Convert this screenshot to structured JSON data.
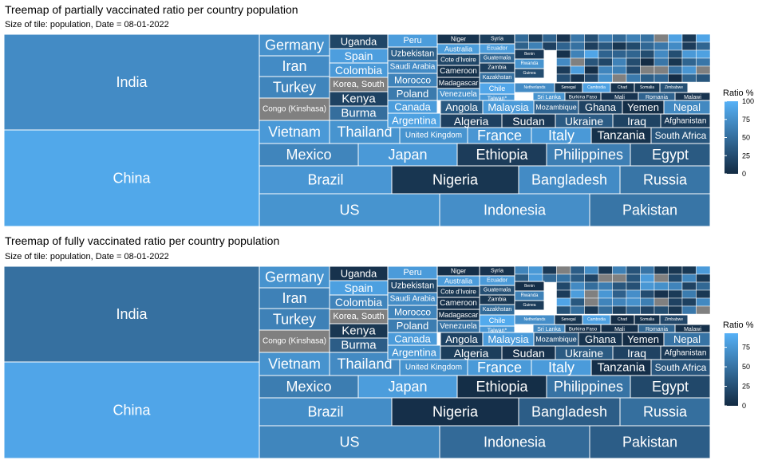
{
  "chart_data": [
    {
      "type": "treemap",
      "title": "Treemap of partially vaccinated ratio per country population",
      "subtitle": "Size of tile: population, Date = 08-01-2022",
      "legend": {
        "title": "Ratio %",
        "ticks": [
          0,
          25,
          50,
          75,
          100
        ],
        "range": [
          0,
          100
        ],
        "low_color": "#132B43",
        "high_color": "#56B1F7"
      },
      "missing_color": "#808080",
      "tiles": [
        {
          "label": "India",
          "ratio": 72
        },
        {
          "label": "China",
          "ratio": 93
        },
        {
          "label": "US",
          "ratio": 78
        },
        {
          "label": "Indonesia",
          "ratio": 74
        },
        {
          "label": "Pakistan",
          "ratio": 55
        },
        {
          "label": "Brazil",
          "ratio": 80
        },
        {
          "label": "Nigeria",
          "ratio": 8
        },
        {
          "label": "Bangladesh",
          "ratio": 72
        },
        {
          "label": "Russia",
          "ratio": 55
        },
        {
          "label": "Mexico",
          "ratio": 67
        },
        {
          "label": "Japan",
          "ratio": 82
        },
        {
          "label": "Ethiopia",
          "ratio": 13
        },
        {
          "label": "Philippines",
          "ratio": 62
        },
        {
          "label": "Egypt",
          "ratio": 35
        },
        {
          "label": "Germany",
          "ratio": 76
        },
        {
          "label": "Iran",
          "ratio": 72
        },
        {
          "label": "Turkey",
          "ratio": 67
        },
        {
          "label": "Congo (Kinshasa)",
          "ratio": null
        },
        {
          "label": "Vietnam",
          "ratio": 82
        },
        {
          "label": "Uganda",
          "ratio": 20
        },
        {
          "label": "Spain",
          "ratio": 86
        },
        {
          "label": "Colombia",
          "ratio": 83
        },
        {
          "label": "Korea, South",
          "ratio": null
        },
        {
          "label": "Kenya",
          "ratio": 17
        },
        {
          "label": "Burma",
          "ratio": 50
        },
        {
          "label": "Thailand",
          "ratio": 78
        },
        {
          "label": "Peru",
          "ratio": 85
        },
        {
          "label": "Uzbekistan",
          "ratio": 40
        },
        {
          "label": "Saudi Arabia",
          "ratio": 72
        },
        {
          "label": "Morocco",
          "ratio": 66
        },
        {
          "label": "Poland",
          "ratio": 59
        },
        {
          "label": "Canada",
          "ratio": 85
        },
        {
          "label": "Argentina",
          "ratio": 88
        },
        {
          "label": "Niger",
          "ratio": 6
        },
        {
          "label": "Australia",
          "ratio": 84
        },
        {
          "label": "Cote d'Ivoire",
          "ratio": 20
        },
        {
          "label": "Cameroon",
          "ratio": 5
        },
        {
          "label": "Madagascar",
          "ratio": 4
        },
        {
          "label": "Venezuela",
          "ratio": 75
        },
        {
          "label": "Syria",
          "ratio": 14
        },
        {
          "label": "Ecuador",
          "ratio": 85
        },
        {
          "label": "Guatemala",
          "ratio": 45
        },
        {
          "label": "Zambia",
          "ratio": 15
        },
        {
          "label": "Kazakhstan",
          "ratio": 52
        },
        {
          "label": "Chile",
          "ratio": 92
        },
        {
          "label": "Taiwan*",
          "ratio": 82
        },
        {
          "label": "Benin",
          "ratio": 10
        },
        {
          "label": "Rwanda",
          "ratio": 78
        },
        {
          "label": "Guinea",
          "ratio": 25
        },
        {
          "label": "Netherlands",
          "ratio": 72
        },
        {
          "label": "Senegal",
          "ratio": 8
        },
        {
          "label": "Sri Lanka",
          "ratio": 78
        },
        {
          "label": "Burkina Faso",
          "ratio": 8
        },
        {
          "label": "Cambodia",
          "ratio": 89
        },
        {
          "label": "Chad",
          "ratio": 5
        },
        {
          "label": "Mali",
          "ratio": 7
        },
        {
          "label": "Somalia",
          "ratio": 8
        },
        {
          "label": "Zimbabwe",
          "ratio": 28
        },
        {
          "label": "Romania",
          "ratio": 42
        },
        {
          "label": "Malawi",
          "ratio": 7
        },
        {
          "label": "Angola",
          "ratio": 35
        },
        {
          "label": "Malaysia",
          "ratio": 83
        },
        {
          "label": "Mozambique",
          "ratio": 42
        },
        {
          "label": "Ghana",
          "ratio": 17
        },
        {
          "label": "Yemen",
          "ratio": 2
        },
        {
          "label": "Nepal",
          "ratio": 70
        },
        {
          "label": "Algeria",
          "ratio": 16
        },
        {
          "label": "Sudan",
          "ratio": 10
        },
        {
          "label": "Ukraine",
          "ratio": 36
        },
        {
          "label": "Iraq",
          "ratio": 18
        },
        {
          "label": "Afghanistan",
          "ratio": 12
        },
        {
          "label": "France",
          "ratio": 80
        },
        {
          "label": "United Kingdom",
          "ratio": 78
        },
        {
          "label": "Italy",
          "ratio": 82
        },
        {
          "label": "Tanzania",
          "ratio": 5
        },
        {
          "label": "South Africa",
          "ratio": 32
        }
      ]
    },
    {
      "type": "treemap",
      "title": "Treemap of fully vaccinated ratio per country population",
      "subtitle": "Size of tile: population, Date = 08-01-2022",
      "legend": {
        "title": "Ratio %",
        "ticks": [
          0,
          25,
          50,
          75
        ],
        "range": [
          0,
          93
        ],
        "low_color": "#132B43",
        "high_color": "#56B1F7"
      },
      "missing_color": "#808080",
      "tiles": [
        {
          "label": "India",
          "ratio": 48
        },
        {
          "label": "China",
          "ratio": 85
        },
        {
          "label": "US",
          "ratio": 63
        },
        {
          "label": "Indonesia",
          "ratio": 44
        },
        {
          "label": "Pakistan",
          "ratio": 35
        },
        {
          "label": "Brazil",
          "ratio": 68
        },
        {
          "label": "Nigeria",
          "ratio": 3
        },
        {
          "label": "Bangladesh",
          "ratio": 35
        },
        {
          "label": "Russia",
          "ratio": 47
        },
        {
          "label": "Mexico",
          "ratio": 57
        },
        {
          "label": "Japan",
          "ratio": 79
        },
        {
          "label": "Ethiopia",
          "ratio": 2
        },
        {
          "label": "Philippines",
          "ratio": 50
        },
        {
          "label": "Egypt",
          "ratio": 20
        },
        {
          "label": "Germany",
          "ratio": 72
        },
        {
          "label": "Iran",
          "ratio": 60
        },
        {
          "label": "Turkey",
          "ratio": 60
        },
        {
          "label": "Congo (Kinshasa)",
          "ratio": null
        },
        {
          "label": "Vietnam",
          "ratio": 72
        },
        {
          "label": "Uganda",
          "ratio": 5
        },
        {
          "label": "Spain",
          "ratio": 81
        },
        {
          "label": "Colombia",
          "ratio": 62
        },
        {
          "label": "Korea, South",
          "ratio": null
        },
        {
          "label": "Kenya",
          "ratio": 8
        },
        {
          "label": "Burma",
          "ratio": 35
        },
        {
          "label": "Thailand",
          "ratio": 66
        },
        {
          "label": "Peru",
          "ratio": 78
        },
        {
          "label": "Uzbekistan",
          "ratio": 20
        },
        {
          "label": "Saudi Arabia",
          "ratio": 68
        },
        {
          "label": "Morocco",
          "ratio": 62
        },
        {
          "label": "Poland",
          "ratio": 57
        },
        {
          "label": "Canada",
          "ratio": 78
        },
        {
          "label": "Argentina",
          "ratio": 75
        },
        {
          "label": "Niger",
          "ratio": 3
        },
        {
          "label": "Australia",
          "ratio": 78
        },
        {
          "label": "Cote d'Ivoire",
          "ratio": 8
        },
        {
          "label": "Cameroon",
          "ratio": 3
        },
        {
          "label": "Madagascar",
          "ratio": 2
        },
        {
          "label": "Venezuela",
          "ratio": 50
        },
        {
          "label": "Syria",
          "ratio": 5
        },
        {
          "label": "Ecuador",
          "ratio": 77
        },
        {
          "label": "Guatemala",
          "ratio": 25
        },
        {
          "label": "Zambia",
          "ratio": 8
        },
        {
          "label": "Kazakhstan",
          "ratio": 45
        },
        {
          "label": "Chile",
          "ratio": 88
        },
        {
          "label": "Taiwan*",
          "ratio": 75
        },
        {
          "label": "Benin",
          "ratio": 3
        },
        {
          "label": "Rwanda",
          "ratio": 60
        },
        {
          "label": "Guinea",
          "ratio": 12
        },
        {
          "label": "Netherlands",
          "ratio": 69
        },
        {
          "label": "Senegal",
          "ratio": 6
        },
        {
          "label": "Sri Lanka",
          "ratio": 65
        },
        {
          "label": "Burkina Faso",
          "ratio": 4
        },
        {
          "label": "Cambodia",
          "ratio": 82
        },
        {
          "label": "Chad",
          "ratio": 1
        },
        {
          "label": "Mali",
          "ratio": 3
        },
        {
          "label": "Somalia",
          "ratio": 4
        },
        {
          "label": "Zimbabwe",
          "ratio": 19
        },
        {
          "label": "Romania",
          "ratio": 40
        },
        {
          "label": "Malawi",
          "ratio": 4
        },
        {
          "label": "Angola",
          "ratio": 17
        },
        {
          "label": "Malaysia",
          "ratio": 78
        },
        {
          "label": "Mozambique",
          "ratio": 30
        },
        {
          "label": "Ghana",
          "ratio": 6
        },
        {
          "label": "Yemen",
          "ratio": 1
        },
        {
          "label": "Nepal",
          "ratio": 50
        },
        {
          "label": "Algeria",
          "ratio": 13
        },
        {
          "label": "Sudan",
          "ratio": 5
        },
        {
          "label": "Ukraine",
          "ratio": 33
        },
        {
          "label": "Iraq",
          "ratio": 16
        },
        {
          "label": "Afghanistan",
          "ratio": 10
        },
        {
          "label": "France",
          "ratio": 77
        },
        {
          "label": "United Kingdom",
          "ratio": 72
        },
        {
          "label": "Italy",
          "ratio": 78
        },
        {
          "label": "Tanzania",
          "ratio": 3
        },
        {
          "label": "South Africa",
          "ratio": 30
        }
      ]
    }
  ]
}
